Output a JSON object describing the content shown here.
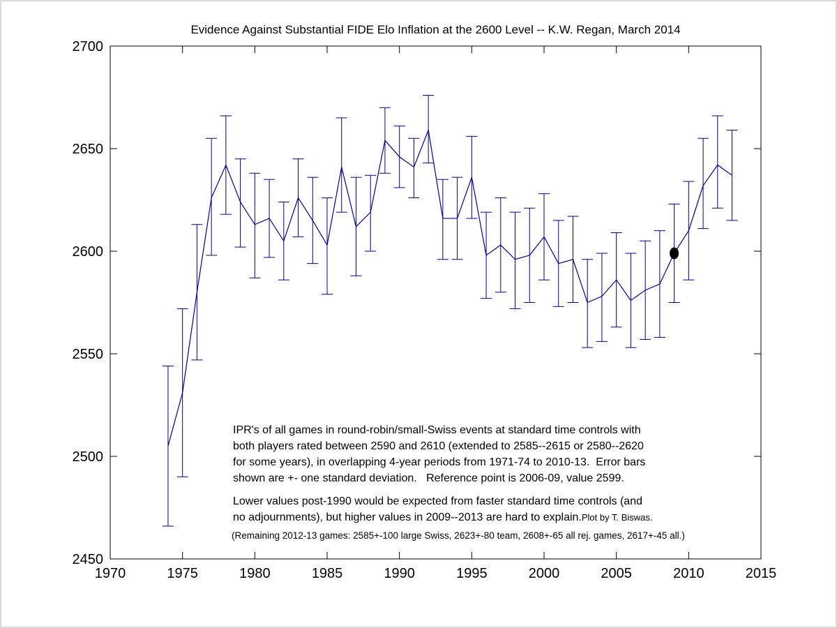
{
  "figure": {
    "background": "#ffffff",
    "axis_color": "#000000",
    "line_color": "#00008B",
    "reference_dot_color": "#000000",
    "border_color": "#d9d9d9"
  },
  "chart_data": {
    "type": "line",
    "title": "Evidence Against Substantial FIDE Elo Inflation at the 2600 Level -- K.W. Regan, March 2014",
    "xlabel": "",
    "ylabel": "",
    "xlim": [
      1970,
      2015
    ],
    "ylim": [
      2450,
      2700
    ],
    "x_ticks": [
      1970,
      1975,
      1980,
      1985,
      1990,
      1995,
      2000,
      2005,
      2010,
      2015
    ],
    "y_ticks": [
      2450,
      2500,
      2550,
      2600,
      2650,
      2700
    ],
    "grid": false,
    "legend": null,
    "marker": "none",
    "error_bars": "plus-minus one standard deviation",
    "series": [
      {
        "name": "IPR of all games, overlapping 4-year periods (plotted at ending year)",
        "x": [
          1974,
          1975,
          1976,
          1977,
          1978,
          1979,
          1980,
          1981,
          1982,
          1983,
          1984,
          1985,
          1986,
          1987,
          1988,
          1989,
          1990,
          1991,
          1992,
          1993,
          1994,
          1995,
          1996,
          1997,
          1998,
          1999,
          2000,
          2001,
          2002,
          2003,
          2004,
          2005,
          2006,
          2007,
          2008,
          2009,
          2010,
          2011,
          2012,
          2013
        ],
        "y": [
          2505,
          2531,
          2580,
          2626,
          2642,
          2624,
          2613,
          2616,
          2605,
          2626,
          2615,
          2603,
          2641,
          2612,
          2619,
          2654,
          2646,
          2641,
          2659,
          2616,
          2616,
          2636,
          2598,
          2603,
          2596,
          2598,
          2607,
          2594,
          2596,
          2575,
          2578,
          2586,
          2576,
          2581,
          2584,
          2599,
          2610,
          2632,
          2642,
          2637
        ],
        "err_low": [
          2466,
          2490,
          2547,
          2598,
          2618,
          2602,
          2587,
          2597,
          2586,
          2607,
          2594,
          2579,
          2619,
          2588,
          2600,
          2638,
          2631,
          2626,
          2643,
          2596,
          2596,
          2616,
          2577,
          2580,
          2572,
          2575,
          2586,
          2573,
          2575,
          2553,
          2556,
          2563,
          2553,
          2557,
          2558,
          2575,
          2586,
          2611,
          2621,
          2615
        ],
        "err_high": [
          2544,
          2572,
          2613,
          2655,
          2666,
          2645,
          2638,
          2635,
          2624,
          2645,
          2636,
          2626,
          2665,
          2636,
          2637,
          2670,
          2661,
          2655,
          2676,
          2635,
          2636,
          2656,
          2619,
          2626,
          2619,
          2621,
          2628,
          2615,
          2617,
          2596,
          2599,
          2609,
          2599,
          2605,
          2610,
          2623,
          2634,
          2655,
          2666,
          2659
        ]
      }
    ],
    "reference_point": {
      "x": 2009,
      "y": 2599,
      "marker": "filled-black-ellipse"
    }
  },
  "annotations": {
    "methodology_lines": [
      "IPR's of all games in round-robin/small-Swiss events at standard time controls with",
      "both players rated between 2590 and 2610 (extended to 2585--2615 or 2580--2620",
      "for some years), in overlapping 4-year periods from 1971-74 to 2010-13.  Error bars",
      "shown are +- one standard deviation.   Reference point is 2006-09, value 2599."
    ],
    "discussion_lines": [
      "Lower values post-1990 would be expected from faster standard time controls (and",
      "no adjournments), but higher values in 2009--2013 are hard to explain."
    ],
    "credit": "Plot by T. Biswas.",
    "footnote": "(Remaining 2012-13 games: 2585+-100 large Swiss, 2623+-80 team, 2608+-65 all rej. games, 2617+-45 all.)"
  }
}
